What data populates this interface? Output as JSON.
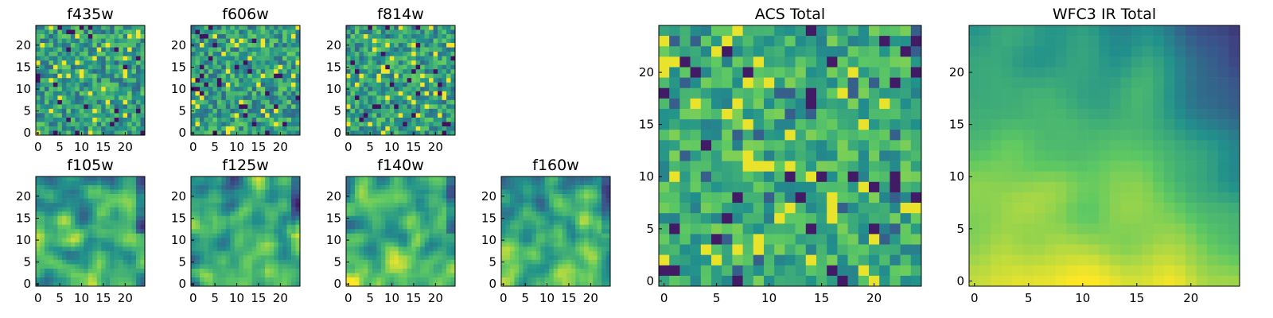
{
  "figure": {
    "description_free": true
  },
  "colormap": {
    "name": "viridis",
    "stops": [
      "#440154",
      "#3b528b",
      "#21918c",
      "#5ec962",
      "#fde725"
    ]
  },
  "chart_data": [
    {
      "type": "heatmap",
      "title": "f435w",
      "grid_size": 25,
      "pattern": "noise_fine",
      "seed": 11,
      "xticks": [
        0,
        5,
        10,
        15,
        20
      ],
      "yticks": [
        0,
        5,
        10,
        15,
        20
      ]
    },
    {
      "type": "heatmap",
      "title": "f606w",
      "grid_size": 25,
      "pattern": "noise_fine",
      "seed": 23,
      "xticks": [
        0,
        5,
        10,
        15,
        20
      ],
      "yticks": [
        0,
        5,
        10,
        15,
        20
      ]
    },
    {
      "type": "heatmap",
      "title": "f814w",
      "grid_size": 25,
      "pattern": "noise_fine",
      "seed": 37,
      "xticks": [
        0,
        5,
        10,
        15,
        20
      ],
      "yticks": [
        0,
        5,
        10,
        15,
        20
      ]
    },
    {
      "type": "heatmap",
      "title": "f105w",
      "grid_size": 25,
      "pattern": "smooth_ir",
      "seed": 41,
      "xticks": [
        0,
        5,
        10,
        15,
        20
      ],
      "yticks": [
        0,
        5,
        10,
        15,
        20
      ]
    },
    {
      "type": "heatmap",
      "title": "f125w",
      "grid_size": 25,
      "pattern": "smooth_ir",
      "seed": 53,
      "xticks": [
        0,
        5,
        10,
        15,
        20
      ],
      "yticks": [
        0,
        5,
        10,
        15,
        20
      ]
    },
    {
      "type": "heatmap",
      "title": "f140w",
      "grid_size": 25,
      "pattern": "smooth_ir",
      "seed": 67,
      "xticks": [
        0,
        5,
        10,
        15,
        20
      ],
      "yticks": [
        0,
        5,
        10,
        15,
        20
      ]
    },
    {
      "type": "heatmap",
      "title": "f160w",
      "grid_size": 25,
      "pattern": "smooth_ir",
      "seed": 79,
      "xticks": [
        0,
        5,
        10,
        15,
        20
      ],
      "yticks": [
        0,
        5,
        10,
        15,
        20
      ]
    },
    {
      "type": "heatmap",
      "title": "ACS Total",
      "grid_size": 25,
      "pattern": "noise_coarse",
      "seed": 83,
      "xticks": [
        0,
        5,
        10,
        15,
        20
      ],
      "yticks": [
        0,
        5,
        10,
        15,
        20
      ]
    },
    {
      "type": "heatmap",
      "title": "WFC3 IR Total",
      "grid_size": 25,
      "pattern": "smooth_total",
      "seed": 97,
      "xticks": [
        0,
        5,
        10,
        15,
        20
      ],
      "yticks": [
        0,
        5,
        10,
        15,
        20
      ]
    }
  ]
}
